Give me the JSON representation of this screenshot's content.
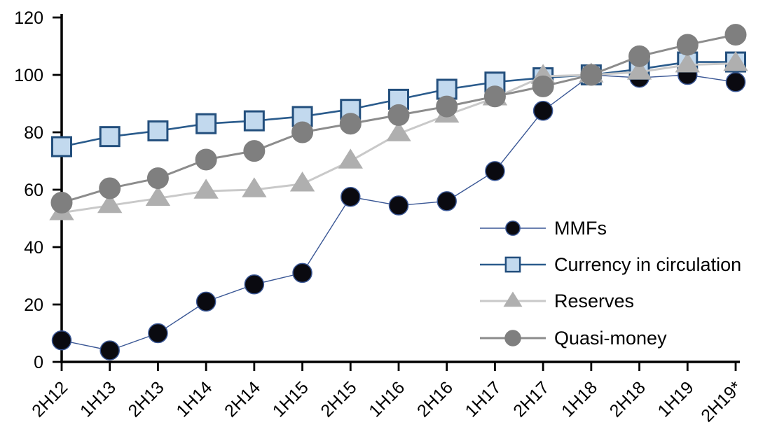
{
  "chart_data": {
    "type": "line",
    "title": "",
    "xlabel": "",
    "ylabel": "",
    "categories": [
      "2H12",
      "1H13",
      "2H13",
      "1H14",
      "2H14",
      "1H15",
      "2H15",
      "1H16",
      "2H16",
      "1H17",
      "2H17",
      "1H18",
      "2H18",
      "1H19",
      "2H19*"
    ],
    "series": [
      {
        "name": "MMFs",
        "marker": "circle",
        "line_color": "#3A5795",
        "line_width": 1.4,
        "marker_fill": "#0a0a10",
        "marker_stroke": "#3A5795",
        "marker_stroke_width": 1.5,
        "marker_size": 27,
        "values": [
          7.5,
          4,
          10,
          21,
          27,
          31,
          57.5,
          54.5,
          56,
          66.5,
          87.5,
          100,
          99,
          100,
          97.5
        ]
      },
      {
        "name": "Currency in circulation",
        "marker": "square",
        "line_color": "#2A5B8C",
        "line_width": 2.6,
        "marker_fill": "#C2D9EE",
        "marker_stroke": "#234F7D",
        "marker_stroke_width": 3,
        "marker_size": 27,
        "values": [
          75,
          78.5,
          80.5,
          83,
          84,
          85.5,
          88,
          91.5,
          95,
          97.5,
          99,
          100,
          102,
          104.5,
          104.5
        ]
      },
      {
        "name": "Reserves",
        "marker": "triangle",
        "line_color": "#C9C9C9",
        "line_width": 3,
        "marker_fill": "#AFAFAF",
        "marker_stroke": "#AFAFAF",
        "marker_stroke_width": 1,
        "marker_size": 30,
        "values": [
          52,
          54.5,
          57,
          59.5,
          60,
          62,
          70,
          79.5,
          86,
          92,
          99.5,
          100,
          101,
          103.5,
          104
        ]
      },
      {
        "name": "Quasi-money",
        "marker": "circle",
        "line_color": "#8C8C8C",
        "line_width": 3,
        "marker_fill": "#7F7F7F",
        "marker_stroke": "#7F7F7F",
        "marker_stroke_width": 1,
        "marker_size": 30,
        "values": [
          55.5,
          60.5,
          64,
          70.5,
          73.5,
          80,
          83,
          86,
          89,
          92.5,
          96,
          100,
          106.5,
          110.5,
          114
        ]
      }
    ],
    "ylim": [
      0,
      120
    ],
    "yticks": [
      0,
      20,
      40,
      60,
      80,
      100,
      120
    ],
    "grid": false,
    "legend_position": "inside-right",
    "axis_color": "#000000",
    "legend_items": [
      "MMFs",
      "Currency in circulation",
      "Reserves",
      "Quasi-money"
    ]
  }
}
